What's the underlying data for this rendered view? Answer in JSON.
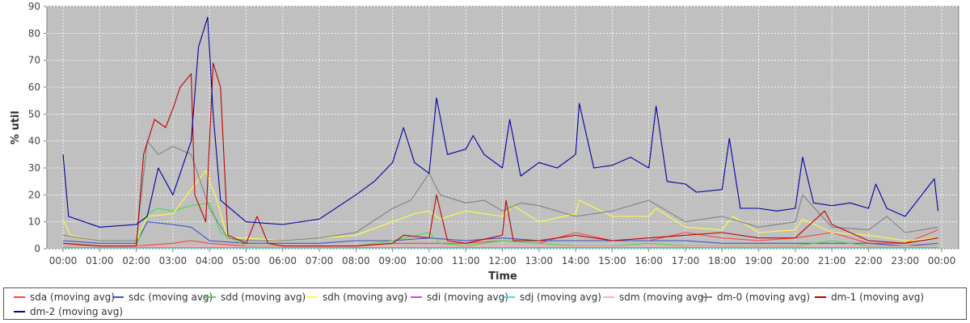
{
  "chart_data": {
    "type": "line",
    "title": "",
    "xlabel": "Time",
    "ylabel": "% util",
    "ylim": [
      0,
      90
    ],
    "yticks": [
      0,
      10,
      20,
      30,
      40,
      50,
      60,
      70,
      80,
      90
    ],
    "xlim": [
      0,
      24
    ],
    "xticks": [
      "00:00",
      "01:00",
      "02:00",
      "03:00",
      "04:00",
      "05:00",
      "06:00",
      "07:00",
      "08:00",
      "09:00",
      "10:00",
      "11:00",
      "12:00",
      "13:00",
      "14:00",
      "15:00",
      "16:00",
      "17:00",
      "18:00",
      "19:00",
      "20:00",
      "21:00",
      "22:00",
      "23:00",
      "00:00"
    ],
    "grid": true,
    "legend_position": "bottom",
    "series": [
      {
        "name": "sda (moving avg)",
        "color": "#ff4040",
        "points": [
          [
            0,
            2
          ],
          [
            1,
            1
          ],
          [
            2,
            1
          ],
          [
            3,
            2
          ],
          [
            3.5,
            3
          ],
          [
            4,
            2
          ],
          [
            5,
            1
          ],
          [
            6,
            1
          ],
          [
            7,
            1
          ],
          [
            8,
            1
          ],
          [
            9,
            2
          ],
          [
            10,
            2
          ],
          [
            11,
            2
          ],
          [
            12,
            3
          ],
          [
            13,
            2
          ],
          [
            14,
            6
          ],
          [
            15,
            3
          ],
          [
            16,
            3
          ],
          [
            17,
            6
          ],
          [
            18,
            4
          ],
          [
            19,
            3
          ],
          [
            20,
            4
          ],
          [
            21,
            6
          ],
          [
            22,
            2
          ],
          [
            23,
            2
          ],
          [
            23.9,
            7
          ]
        ]
      },
      {
        "name": "sdc (moving avg)",
        "color": "#4050c8",
        "points": [
          [
            0,
            3
          ],
          [
            1,
            2
          ],
          [
            2,
            2
          ],
          [
            2.3,
            10
          ],
          [
            3,
            9
          ],
          [
            3.5,
            8
          ],
          [
            4,
            3
          ],
          [
            5,
            2
          ],
          [
            6,
            2
          ],
          [
            7,
            2
          ],
          [
            8,
            3
          ],
          [
            9,
            3
          ],
          [
            10,
            4
          ],
          [
            11,
            3
          ],
          [
            12,
            4
          ],
          [
            13,
            3
          ],
          [
            14,
            3
          ],
          [
            15,
            3
          ],
          [
            16,
            3
          ],
          [
            17,
            3
          ],
          [
            18,
            2
          ],
          [
            19,
            2
          ],
          [
            20,
            2
          ],
          [
            21,
            2
          ],
          [
            22,
            2
          ],
          [
            23,
            1
          ],
          [
            23.9,
            2
          ]
        ]
      },
      {
        "name": "sdd (moving avg)",
        "color": "#40e040",
        "points": [
          [
            0,
            1
          ],
          [
            1,
            1
          ],
          [
            2,
            1
          ],
          [
            2.3,
            13
          ],
          [
            2.6,
            15
          ],
          [
            3,
            14
          ],
          [
            3.5,
            16
          ],
          [
            4,
            17
          ],
          [
            4.3,
            6
          ],
          [
            5,
            1
          ],
          [
            6,
            1
          ],
          [
            7,
            1
          ],
          [
            8,
            1
          ],
          [
            9,
            3
          ],
          [
            10,
            6
          ],
          [
            10.3,
            2
          ],
          [
            11,
            1
          ],
          [
            12,
            3
          ],
          [
            13,
            2
          ],
          [
            14,
            1
          ],
          [
            15,
            1
          ],
          [
            16,
            2
          ],
          [
            17,
            1
          ],
          [
            18,
            1
          ],
          [
            19,
            1
          ],
          [
            20,
            1
          ],
          [
            21,
            3
          ],
          [
            22,
            1
          ],
          [
            23,
            1
          ],
          [
            23.9,
            1
          ]
        ]
      },
      {
        "name": "sdh (moving avg)",
        "color": "#ffff40",
        "points": [
          [
            0,
            11
          ],
          [
            0.2,
            5
          ],
          [
            1,
            3
          ],
          [
            2,
            3
          ],
          [
            2.3,
            12
          ],
          [
            3,
            13
          ],
          [
            3.5,
            22
          ],
          [
            3.9,
            29
          ],
          [
            4.2,
            18
          ],
          [
            4.5,
            4
          ],
          [
            5,
            4
          ],
          [
            6,
            3
          ],
          [
            7,
            4
          ],
          [
            8,
            5
          ],
          [
            9,
            10
          ],
          [
            9.6,
            13
          ],
          [
            10,
            14
          ],
          [
            10.3,
            11
          ],
          [
            11,
            14
          ],
          [
            12,
            12
          ],
          [
            12.3,
            16
          ],
          [
            13,
            10
          ],
          [
            14,
            13
          ],
          [
            14.1,
            18
          ],
          [
            15,
            12
          ],
          [
            16,
            12
          ],
          [
            16.2,
            15
          ],
          [
            17,
            8
          ],
          [
            18,
            7
          ],
          [
            18.3,
            12
          ],
          [
            19,
            6
          ],
          [
            20,
            7
          ],
          [
            20.2,
            11
          ],
          [
            21,
            6
          ],
          [
            22,
            5
          ],
          [
            23,
            3
          ],
          [
            23.9,
            4
          ]
        ]
      },
      {
        "name": "sdi (moving avg)",
        "color": "#e040e0",
        "points": [
          [
            0,
            0.5
          ],
          [
            6,
            0.5
          ],
          [
            12,
            0.5
          ],
          [
            18,
            0.5
          ],
          [
            23.9,
            0.5
          ]
        ]
      },
      {
        "name": "sdj (moving avg)",
        "color": "#40e0e0",
        "points": [
          [
            0,
            0.3
          ],
          [
            6,
            0.3
          ],
          [
            12,
            0.3
          ],
          [
            18,
            0.3
          ],
          [
            23.9,
            0.3
          ]
        ]
      },
      {
        "name": "sdm (moving avg)",
        "color": "#ffb0b0",
        "points": [
          [
            0,
            0.8
          ],
          [
            6,
            0.8
          ],
          [
            12,
            0.8
          ],
          [
            18,
            0.8
          ],
          [
            23.9,
            0.8
          ]
        ]
      },
      {
        "name": "dm-0 (moving avg)",
        "color": "#808080",
        "points": [
          [
            0,
            5
          ],
          [
            1,
            3
          ],
          [
            2,
            3
          ],
          [
            2.3,
            40
          ],
          [
            2.6,
            35
          ],
          [
            3,
            38
          ],
          [
            3.5,
            35
          ],
          [
            4,
            15
          ],
          [
            4.5,
            4
          ],
          [
            5,
            3
          ],
          [
            6,
            3
          ],
          [
            7,
            4
          ],
          [
            8,
            6
          ],
          [
            9,
            15
          ],
          [
            9.5,
            18
          ],
          [
            10,
            28
          ],
          [
            10.3,
            20
          ],
          [
            11,
            17
          ],
          [
            11.5,
            18
          ],
          [
            12,
            14
          ],
          [
            12.5,
            17
          ],
          [
            13,
            16
          ],
          [
            14,
            12
          ],
          [
            15,
            14
          ],
          [
            16,
            18
          ],
          [
            16.5,
            14
          ],
          [
            17,
            10
          ],
          [
            18,
            12
          ],
          [
            19,
            8
          ],
          [
            20,
            10
          ],
          [
            20.2,
            20
          ],
          [
            21,
            8
          ],
          [
            22,
            7
          ],
          [
            22.5,
            12
          ],
          [
            23,
            6
          ],
          [
            23.9,
            8
          ]
        ]
      },
      {
        "name": "dm-1 (moving avg)",
        "color": "#c00000",
        "points": [
          [
            0,
            2
          ],
          [
            1,
            1
          ],
          [
            2,
            1
          ],
          [
            2.2,
            35
          ],
          [
            2.5,
            48
          ],
          [
            2.8,
            45
          ],
          [
            3,
            52
          ],
          [
            3.2,
            60
          ],
          [
            3.5,
            65
          ],
          [
            3.6,
            20
          ],
          [
            3.9,
            10
          ],
          [
            4.1,
            69
          ],
          [
            4.3,
            60
          ],
          [
            4.5,
            5
          ],
          [
            5,
            2
          ],
          [
            5.3,
            12
          ],
          [
            5.6,
            2
          ],
          [
            6,
            1
          ],
          [
            7,
            1
          ],
          [
            8,
            1
          ],
          [
            9,
            2
          ],
          [
            9.3,
            5
          ],
          [
            10,
            4
          ],
          [
            10.2,
            20
          ],
          [
            10.5,
            3
          ],
          [
            11,
            2
          ],
          [
            12,
            5
          ],
          [
            12.1,
            18
          ],
          [
            12.3,
            3
          ],
          [
            13,
            3
          ],
          [
            14,
            5
          ],
          [
            15,
            3
          ],
          [
            16,
            4
          ],
          [
            17,
            5
          ],
          [
            18,
            6
          ],
          [
            19,
            4
          ],
          [
            20,
            4
          ],
          [
            20.8,
            14
          ],
          [
            21,
            9
          ],
          [
            22,
            3
          ],
          [
            23,
            2
          ],
          [
            23.9,
            4
          ]
        ]
      },
      {
        "name": "dm-2 (moving avg)",
        "color": "#0000a0",
        "points": [
          [
            0,
            35
          ],
          [
            0.15,
            12
          ],
          [
            1,
            8
          ],
          [
            2,
            9
          ],
          [
            2.3,
            12
          ],
          [
            2.6,
            30
          ],
          [
            3,
            20
          ],
          [
            3.5,
            40
          ],
          [
            3.7,
            75
          ],
          [
            3.95,
            86
          ],
          [
            4.1,
            50
          ],
          [
            4.3,
            18
          ],
          [
            5,
            10
          ],
          [
            6,
            9
          ],
          [
            7,
            11
          ],
          [
            8,
            20
          ],
          [
            8.5,
            25
          ],
          [
            9,
            32
          ],
          [
            9.3,
            45
          ],
          [
            9.6,
            32
          ],
          [
            10,
            28
          ],
          [
            10.2,
            56
          ],
          [
            10.5,
            35
          ],
          [
            11,
            37
          ],
          [
            11.2,
            42
          ],
          [
            11.5,
            35
          ],
          [
            12,
            30
          ],
          [
            12.2,
            48
          ],
          [
            12.5,
            27
          ],
          [
            13,
            32
          ],
          [
            13.5,
            30
          ],
          [
            14,
            35
          ],
          [
            14.1,
            54
          ],
          [
            14.5,
            30
          ],
          [
            15,
            31
          ],
          [
            15.5,
            34
          ],
          [
            16,
            30
          ],
          [
            16.2,
            53
          ],
          [
            16.5,
            25
          ],
          [
            17,
            24
          ],
          [
            17.3,
            21
          ],
          [
            18,
            22
          ],
          [
            18.2,
            41
          ],
          [
            18.5,
            15
          ],
          [
            19,
            15
          ],
          [
            19.5,
            14
          ],
          [
            20,
            15
          ],
          [
            20.2,
            34
          ],
          [
            20.5,
            17
          ],
          [
            21,
            16
          ],
          [
            21.5,
            17
          ],
          [
            22,
            15
          ],
          [
            22.2,
            24
          ],
          [
            22.5,
            15
          ],
          [
            23,
            12
          ],
          [
            23.8,
            26
          ],
          [
            23.9,
            14
          ]
        ]
      }
    ]
  }
}
